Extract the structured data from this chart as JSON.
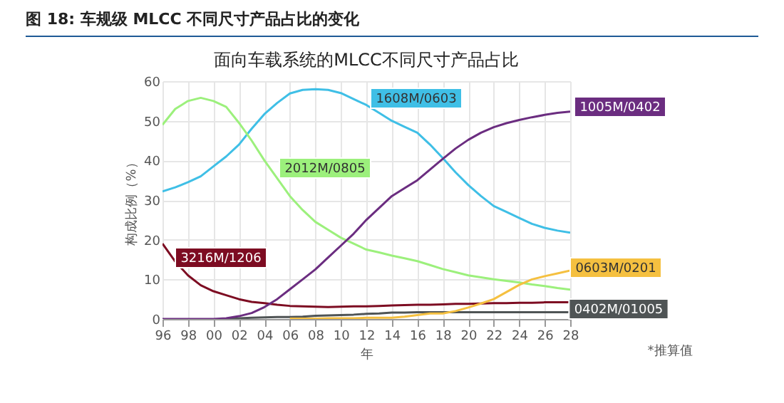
{
  "chart_data": {
    "type": "line",
    "title": "图 18: 车规级 MLCC 不同尺寸产品占比的变化",
    "subtitle": "面向车载系统的MLCC不同尺寸产品占比",
    "xlabel": "年",
    "ylabel": "构成比例（%）",
    "annotations": [
      "*推算值"
    ],
    "x": [
      1996,
      1997,
      1998,
      1999,
      2000,
      2001,
      2002,
      2003,
      2004,
      2005,
      2006,
      2007,
      2008,
      2009,
      2010,
      2011,
      2012,
      2013,
      2014,
      2015,
      2016,
      2017,
      2018,
      2019,
      2020,
      2021,
      2022,
      2023,
      2024,
      2025,
      2026,
      2027,
      2028
    ],
    "series": [
      {
        "name": "1608M/0603",
        "color": "#3fbfe6",
        "values": [
          32.2,
          33.2,
          34.5,
          36,
          38.5,
          41,
          44,
          48,
          51.7,
          54.5,
          56.9,
          57.8,
          58,
          57.8,
          57,
          55.5,
          54,
          52,
          50,
          48.5,
          47,
          44,
          40.6,
          37,
          33.8,
          31,
          28.5,
          27,
          25.5,
          24,
          23,
          22.3,
          21.8
        ]
      },
      {
        "name": "2012M/0805",
        "color": "#9cf07c",
        "values": [
          49,
          53,
          55,
          55.8,
          55,
          53.5,
          49.5,
          45,
          40,
          35.5,
          31,
          27.5,
          24.5,
          22.5,
          20.5,
          19,
          17.5,
          16.8,
          16,
          15.3,
          14.6,
          13.6,
          12.6,
          11.8,
          11,
          10.5,
          10,
          9.6,
          9.2,
          8.7,
          8.3,
          7.8,
          7.4
        ]
      },
      {
        "name": "3216M/1206",
        "color": "#7d0c22",
        "values": [
          19,
          14.5,
          11,
          8.5,
          7,
          6,
          5,
          4.3,
          4,
          3.6,
          3.3,
          3.2,
          3.1,
          3,
          3.1,
          3.2,
          3.2,
          3.3,
          3.4,
          3.5,
          3.6,
          3.6,
          3.7,
          3.8,
          3.8,
          3.9,
          4,
          4,
          4.1,
          4.1,
          4.2,
          4.2,
          4.2
        ]
      },
      {
        "name": "0402M/01005",
        "color": "#4f5455",
        "values": [
          null,
          null,
          null,
          null,
          null,
          0,
          0.2,
          0.3,
          0.4,
          0.5,
          0.5,
          0.6,
          0.8,
          0.9,
          1,
          1.1,
          1.3,
          1.4,
          1.6,
          1.6,
          1.7,
          1.7,
          1.7,
          1.7,
          1.7,
          1.7,
          1.7,
          1.7,
          1.7,
          1.7,
          1.7,
          1.7,
          1.7
        ]
      },
      {
        "name": "0603M/0201",
        "color": "#f5c040",
        "values": [
          null,
          null,
          null,
          null,
          null,
          null,
          null,
          null,
          null,
          null,
          0.1,
          0.1,
          0.1,
          0.2,
          0.2,
          0.2,
          0.3,
          0.3,
          0.3,
          0.6,
          1,
          1.4,
          1.4,
          2,
          2.9,
          3.9,
          5,
          6.8,
          8.6,
          10,
          10.8,
          11.5,
          12.2
        ]
      },
      {
        "name": "1005M/0402",
        "color": "#6b2d80",
        "values": [
          0,
          0,
          0,
          0,
          0,
          0.2,
          0.7,
          1.5,
          3,
          5,
          7.5,
          10,
          12.5,
          15.5,
          18.5,
          21.5,
          25,
          28,
          31,
          33,
          35,
          37.7,
          40.4,
          43,
          45.2,
          47,
          48.4,
          49.4,
          50.2,
          50.9,
          51.5,
          52,
          52.3
        ]
      }
    ],
    "xlim": [
      1996,
      2028
    ],
    "ylim": [
      0,
      60
    ],
    "xticks": [
      {
        "value": 1996,
        "label": "96"
      },
      {
        "value": 1998,
        "label": "98"
      },
      {
        "value": 2000,
        "label": "00"
      },
      {
        "value": 2002,
        "label": "02"
      },
      {
        "value": 2004,
        "label": "04"
      },
      {
        "value": 2006,
        "label": "06"
      },
      {
        "value": 2008,
        "label": "08"
      },
      {
        "value": 2010,
        "label": "10"
      },
      {
        "value": 2012,
        "label": "12"
      },
      {
        "value": 2014,
        "label": "14"
      },
      {
        "value": 2016,
        "label": "16"
      },
      {
        "value": 2018,
        "label": "18"
      },
      {
        "value": 2020,
        "label": "20"
      },
      {
        "value": 2022,
        "label": "22"
      },
      {
        "value": 2024,
        "label": "24"
      },
      {
        "value": 2026,
        "label": "26"
      },
      {
        "value": 2028,
        "label": "28"
      }
    ],
    "yticks": [
      0,
      10,
      20,
      30,
      40,
      50,
      60
    ],
    "grid": true,
    "line_style": "solid"
  }
}
